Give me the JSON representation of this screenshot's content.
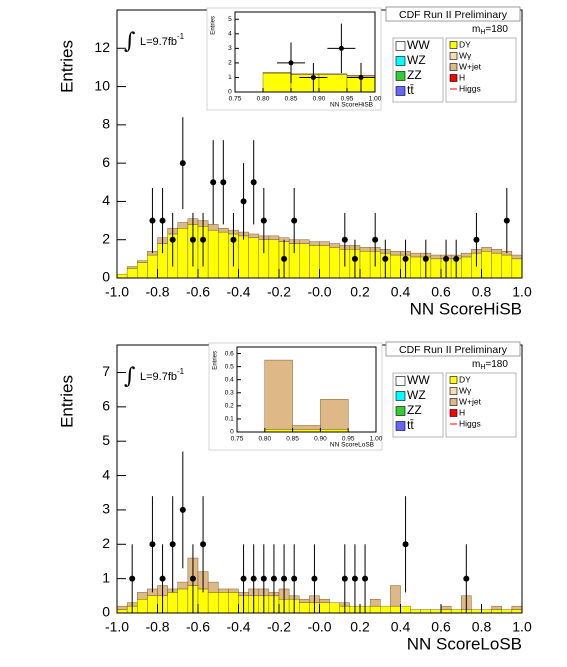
{
  "chart_data": [
    {
      "type": "histogram",
      "title": "CDF Run II Preliminary",
      "x_label": "NN ScoreHiSB",
      "y_label": "Entries",
      "luminosity": {
        "text": "L=9.7fb",
        "sup": "-1"
      },
      "mass_label": {
        "prefix": "m",
        "sub": "H",
        "suffix": "=180"
      },
      "xlim": [
        -1.0,
        1.0
      ],
      "ylim": [
        0,
        14
      ],
      "xticks": [
        {
          "value": -1.0,
          "label": "-1.0"
        },
        -0.8,
        -0.6,
        -0.4,
        -0.2,
        {
          "value": 0,
          "label": "-0.0"
        },
        0.2,
        0.4,
        0.6,
        0.8,
        {
          "value": 1.0,
          "label": "1.0"
        }
      ],
      "yticks": [
        0,
        2,
        4,
        6,
        8,
        10,
        12
      ],
      "bins": [
        -1.0,
        -0.95,
        -0.9,
        -0.85,
        -0.8,
        -0.75,
        -0.7,
        -0.65,
        -0.6,
        -0.55,
        -0.5,
        -0.45,
        -0.4,
        -0.35,
        -0.3,
        -0.25,
        -0.2,
        -0.15,
        -0.1,
        -0.05,
        0,
        0.05,
        0.1,
        0.15,
        0.2,
        0.25,
        0.3,
        0.35,
        0.4,
        0.45,
        0.5,
        0.55,
        0.6,
        0.65,
        0.7,
        0.75,
        0.8,
        0.85,
        0.9,
        0.95,
        1.0
      ],
      "series": [
        {
          "name": "DY",
          "color": "#ffff00",
          "values": [
            0.2,
            0.5,
            0.8,
            1.2,
            1.8,
            2.3,
            2.6,
            2.8,
            2.7,
            2.5,
            2.4,
            2.3,
            2.2,
            2.1,
            2.0,
            2.0,
            1.9,
            1.8,
            1.8,
            1.7,
            1.7,
            1.6,
            1.5,
            1.5,
            1.4,
            1.4,
            1.3,
            1.2,
            1.2,
            1.1,
            1.1,
            1.0,
            1.0,
            1.0,
            1.1,
            1.3,
            1.4,
            1.3,
            1.2,
            1.0
          ]
        },
        {
          "name": "W+jet",
          "color": "#deb887",
          "values": [
            0.0,
            0.1,
            0.1,
            0.2,
            0.3,
            0.3,
            0.3,
            0.3,
            0.3,
            0.3,
            0.2,
            0.2,
            0.2,
            0.2,
            0.2,
            0.2,
            0.2,
            0.2,
            0.2,
            0.2,
            0.2,
            0.2,
            0.2,
            0.2,
            0.2,
            0.2,
            0.2,
            0.2,
            0.2,
            0.2,
            0.2,
            0.2,
            0.2,
            0.2,
            0.2,
            0.2,
            0.2,
            0.2,
            0.2,
            0.2
          ]
        }
      ],
      "other_processes": [
        {
          "name": "WW",
          "color": "#ffffff"
        },
        {
          "name": "WZ",
          "color": "#00ffff"
        },
        {
          "name": "ZZ",
          "color": "#33cc33"
        },
        {
          "name": "tt̄",
          "color": "#6666ff"
        },
        {
          "name": "Wγ",
          "color": "#f5deb3"
        },
        {
          "name": "H",
          "color": "#ff0000"
        },
        {
          "name": "Higgs",
          "color": "#ff0000"
        }
      ],
      "data": {
        "x": [
          -0.825,
          -0.775,
          -0.725,
          -0.675,
          -0.625,
          -0.575,
          -0.525,
          -0.475,
          -0.425,
          -0.375,
          -0.325,
          -0.275,
          -0.175,
          -0.125,
          0.125,
          0.175,
          0.275,
          0.325,
          0.425,
          0.525,
          0.625,
          0.675,
          0.775,
          0.925
        ],
        "values": [
          3,
          3,
          2,
          6,
          2,
          2,
          5,
          5,
          2,
          4,
          5,
          3,
          1,
          3,
          2,
          1,
          2,
          1,
          1,
          1,
          1,
          1,
          2,
          3
        ],
        "errors": [
          1.7,
          1.7,
          1.4,
          2.4,
          1.4,
          1.4,
          2.2,
          2.2,
          1.4,
          2.0,
          2.2,
          1.7,
          1.0,
          1.7,
          1.4,
          1.0,
          1.4,
          1.0,
          1.0,
          1.0,
          1.0,
          1.0,
          1.4,
          1.7
        ]
      },
      "inset": {
        "x_label": "NN ScoreHiSB",
        "y_label": "Entries",
        "xlim": [
          0.75,
          1.0
        ],
        "ylim": [
          0,
          5.5
        ],
        "xticks": [
          0.75,
          {
            "value": 0.8,
            "label": "0.80"
          },
          0.85,
          {
            "value": 0.9,
            "label": "0.90"
          },
          0.95,
          {
            "value": 1.0,
            "label": "1.00"
          }
        ],
        "yticks": [
          0,
          1,
          2,
          3,
          4,
          5
        ],
        "bins": [
          0.75,
          0.8,
          0.85,
          0.9,
          0.95,
          1.0
        ],
        "series": [
          {
            "name": "DY",
            "color": "#ffff00",
            "values": [
              0,
              1.3,
              1.2,
              1.2,
              1.1
            ]
          },
          {
            "name": "W+jet",
            "color": "#deb887",
            "values": [
              0,
              0.05,
              0.05,
              0.05,
              0.05
            ]
          }
        ],
        "data": {
          "x": [
            0.85,
            0.89,
            0.94,
            0.975
          ],
          "values": [
            2,
            1,
            3,
            1
          ],
          "errors": [
            1.4,
            1.0,
            1.7,
            1.0
          ],
          "x_errors": [
            0.025,
            0.025,
            0.025,
            0.025
          ]
        }
      }
    },
    {
      "type": "histogram",
      "title": "CDF Run II Preliminary",
      "x_label": "NN ScoreLoSB",
      "y_label": "Entries",
      "luminosity": {
        "text": "L=9.7fb",
        "sup": "-1"
      },
      "mass_label": {
        "prefix": "m",
        "sub": "H",
        "suffix": "=180"
      },
      "xlim": [
        -1.0,
        1.0
      ],
      "ylim": [
        0,
        7.8
      ],
      "xticks": [
        {
          "value": -1.0,
          "label": "-1.0"
        },
        -0.8,
        -0.6,
        -0.4,
        -0.2,
        {
          "value": 0,
          "label": "-0.0"
        },
        0.2,
        0.4,
        0.6,
        0.8,
        {
          "value": 1.0,
          "label": "1.0"
        }
      ],
      "yticks": [
        0,
        1,
        2,
        3,
        4,
        5,
        6,
        7
      ],
      "bins": [
        -1.0,
        -0.95,
        -0.9,
        -0.85,
        -0.8,
        -0.75,
        -0.7,
        -0.65,
        -0.6,
        -0.55,
        -0.5,
        -0.45,
        -0.4,
        -0.35,
        -0.3,
        -0.25,
        -0.2,
        -0.15,
        -0.1,
        -0.05,
        0,
        0.05,
        0.1,
        0.15,
        0.2,
        0.25,
        0.3,
        0.35,
        0.4,
        0.45,
        0.5,
        0.55,
        0.6,
        0.65,
        0.7,
        0.75,
        0.8,
        0.85,
        0.9,
        0.95,
        1.0
      ],
      "series": [
        {
          "name": "DY",
          "color": "#ffff00",
          "values": [
            0.1,
            0.2,
            0.4,
            0.5,
            0.5,
            0.6,
            0.7,
            0.8,
            0.7,
            0.6,
            0.6,
            0.6,
            0.5,
            0.5,
            0.5,
            0.5,
            0.4,
            0.4,
            0.3,
            0.3,
            0.3,
            0.3,
            0.2,
            0.2,
            0.2,
            0.2,
            0.2,
            0.2,
            0.2,
            0.1,
            0.1,
            0.1,
            0.1,
            0.1,
            0.1,
            0.1,
            0.1,
            0.1,
            0.1,
            0.1
          ]
        },
        {
          "name": "W+jet",
          "color": "#deb887",
          "values": [
            0.1,
            0.1,
            0.2,
            0.2,
            0.3,
            0.1,
            0.2,
            0.8,
            0.5,
            0.3,
            0.1,
            0.1,
            0.1,
            0.2,
            0.2,
            0.1,
            0.3,
            0.1,
            0.1,
            0.2,
            0.1,
            0.0,
            0.1,
            0.0,
            0.0,
            0.2,
            0.0,
            0.6,
            0.0,
            0.0,
            0.0,
            0.0,
            0.1,
            0.0,
            0.4,
            0.0,
            0.0,
            0.1,
            0.0,
            0.1
          ]
        }
      ],
      "other_processes": [
        {
          "name": "WW",
          "color": "#ffffff"
        },
        {
          "name": "WZ",
          "color": "#00ffff"
        },
        {
          "name": "ZZ",
          "color": "#33cc33"
        },
        {
          "name": "tt̄",
          "color": "#6666ff"
        },
        {
          "name": "Wγ",
          "color": "#f5deb3"
        },
        {
          "name": "H",
          "color": "#ff0000"
        },
        {
          "name": "Higgs",
          "color": "#ff0000"
        }
      ],
      "data": {
        "x": [
          -0.925,
          -0.825,
          -0.775,
          -0.725,
          -0.675,
          -0.625,
          -0.575,
          -0.375,
          -0.325,
          -0.275,
          -0.225,
          -0.175,
          -0.125,
          -0.025,
          0.125,
          0.175,
          0.225,
          0.425,
          0.725
        ],
        "values": [
          1,
          2,
          1,
          2,
          3,
          1,
          2,
          1,
          1,
          1,
          1,
          1,
          1,
          1,
          1,
          1,
          1,
          2,
          1
        ],
        "errors": [
          1.0,
          1.4,
          1.0,
          1.4,
          1.7,
          1.0,
          1.4,
          1.0,
          1.0,
          1.0,
          1.0,
          1.0,
          1.0,
          1.0,
          1.0,
          1.0,
          1.0,
          1.4,
          1.0
        ]
      },
      "inset": {
        "x_label": "NN ScoreLoSB",
        "y_label": "Entries",
        "xlim": [
          0.75,
          1.0
        ],
        "ylim": [
          0,
          0.65
        ],
        "xticks": [
          0.75,
          {
            "value": 0.8,
            "label": "0.80"
          },
          0.85,
          {
            "value": 0.9,
            "label": "0.90"
          },
          0.95,
          {
            "value": 1.0,
            "label": "1.00"
          }
        ],
        "yticks": [
          0,
          0.1,
          0.2,
          0.3,
          0.4,
          0.5,
          0.6
        ],
        "bins": [
          0.75,
          0.8,
          0.85,
          0.9,
          0.95,
          1.0
        ],
        "series": [
          {
            "name": "DY",
            "color": "#ffff00",
            "values": [
              0,
              0.02,
              0.02,
              0.02,
              0
            ]
          },
          {
            "name": "W+jet",
            "color": "#deb887",
            "values": [
              0,
              0.53,
              0.03,
              0.23,
              0
            ]
          }
        ]
      }
    }
  ]
}
